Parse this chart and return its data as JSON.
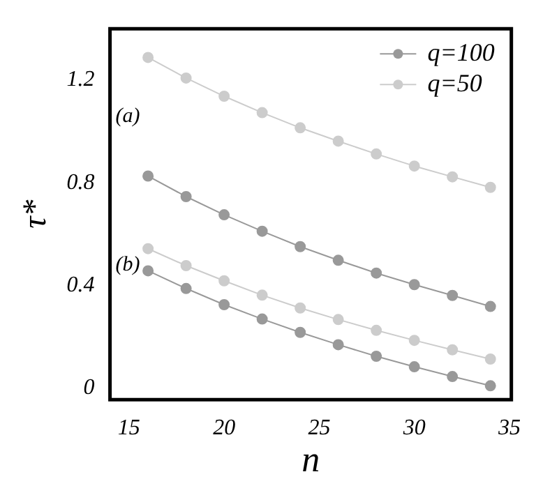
{
  "chart_data": {
    "type": "line",
    "xlabel": "n",
    "ylabel": "τ*",
    "x": [
      16,
      18,
      20,
      22,
      24,
      26,
      28,
      30,
      32,
      34
    ],
    "series": [
      {
        "name": "q=100",
        "color": "#999999",
        "values": [
          0.826,
          0.746,
          0.675,
          0.611,
          0.551,
          0.498,
          0.448,
          0.403,
          0.361,
          0.318
        ]
      },
      {
        "name": "q=50",
        "color": "#cccccc",
        "values": [
          1.288,
          1.208,
          1.137,
          1.073,
          1.014,
          0.962,
          0.912,
          0.865,
          0.823,
          0.782
        ]
      },
      {
        "color": "#999999",
        "values": [
          0.457,
          0.388,
          0.325,
          0.269,
          0.217,
          0.169,
          0.124,
          0.083,
          0.045,
          0.009
        ]
      },
      {
        "color": "#cccccc",
        "values": [
          0.543,
          0.477,
          0.418,
          0.362,
          0.312,
          0.267,
          0.225,
          0.186,
          0.149,
          0.113
        ]
      }
    ],
    "xlim": [
      14,
      35.1
    ],
    "xticks": [
      15,
      20,
      25,
      30,
      35
    ],
    "ylim": [
      -0.045,
      1.4
    ],
    "yticks": [
      0,
      0.4,
      0.8,
      1.2
    ],
    "annotations": [
      "(a)",
      "(b)"
    ],
    "grid": false,
    "legend": "top right",
    "marker": "circle",
    "line_style": "solid"
  }
}
